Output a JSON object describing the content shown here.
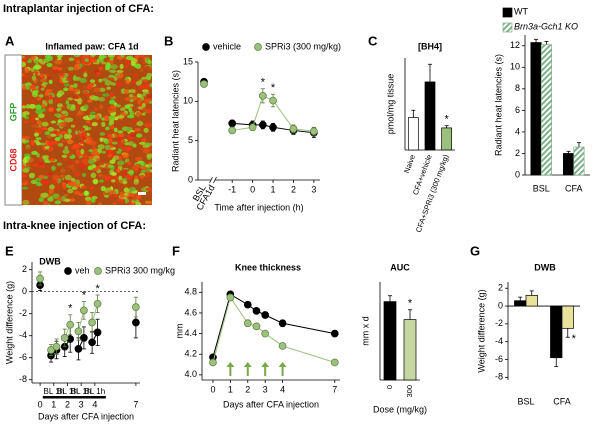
{
  "sections": [
    "Intraplantar injection of CFA:",
    "Intra-knee injection of CFA:"
  ],
  "image_panel": {
    "panel": "A",
    "title": "Inflamed paw: CFA 1d",
    "stain_labels": [
      "CD68",
      "GFP"
    ]
  },
  "chart_data": [
    {
      "type": "line",
      "panel": "B",
      "ylabel": "Radiant heat latencies (s)",
      "xlabel": "Time after injection (h)",
      "baseline_label": "BSL",
      "break_label": "CFA1d",
      "significance_label": "*",
      "x": [
        -1,
        0,
        0.5,
        1,
        2,
        3
      ],
      "xlim": [
        -1.5,
        3.3
      ],
      "xticks": [
        -1,
        0,
        1,
        2,
        3
      ],
      "ylim": [
        0,
        15
      ],
      "yticks": [
        0,
        5,
        10,
        15
      ],
      "series": [
        {
          "name": "vehicle",
          "color": "#000000",
          "baseline": 12.5,
          "baseline_error": 0.3,
          "values": [
            7.2,
            7.0,
            7.0,
            6.7,
            6.3,
            6.0
          ],
          "errors": [
            0.4,
            0.5,
            0.5,
            0.5,
            0.5,
            0.6
          ]
        },
        {
          "name": "SPRi3 (300 mg/kg)",
          "color": "#9cc07e",
          "baseline": 12.2,
          "baseline_error": 0.3,
          "values": [
            6.3,
            6.7,
            10.7,
            10.1,
            6.5,
            6.2
          ],
          "errors": [
            0.3,
            0.4,
            0.9,
            0.8,
            0.5,
            0.5
          ],
          "significant": [
            false,
            false,
            true,
            true,
            false,
            false
          ]
        }
      ]
    },
    {
      "type": "bar",
      "panel": "C",
      "title": "[BH4]",
      "ylabel": "pmol/mg tissue",
      "significance_label": "*",
      "categories": [
        "Naive",
        "CFA+vehicle",
        "CFA+SPRi3 (300 mg/kg)"
      ],
      "values": [
        8.8,
        18.5,
        6.0
      ],
      "errors": [
        2.0,
        4.8,
        0.6
      ],
      "colors": [
        "#ffffff",
        "#000000",
        "#9cc07e"
      ],
      "significant": [
        false,
        false,
        true
      ],
      "ylim": [
        0,
        25
      ]
    },
    {
      "type": "grouped_bar",
      "ylabel": "Radiant heat latencies (s)",
      "categories": [
        "BSL",
        "CFA"
      ],
      "ylim": [
        0,
        13
      ],
      "yticks": [
        0,
        2,
        4,
        6,
        8,
        10,
        12
      ],
      "series": [
        {
          "name": "WT",
          "color": "#000000",
          "values": [
            12.3,
            2.0
          ],
          "errors": [
            0.3,
            0.2
          ]
        },
        {
          "name": "Brn3a-Gch1 KO",
          "color": "#7fb08a",
          "pattern": "hatch",
          "values": [
            12.1,
            2.6
          ],
          "errors": [
            0.3,
            0.4
          ]
        }
      ]
    },
    {
      "type": "line",
      "panel": "E",
      "title": "DWB",
      "ylabel": "Weight difference (g)",
      "xlabel": "Days after CFA injection",
      "significance_label": "*",
      "zero_line": true,
      "line_segments": "paired",
      "period_labels": [
        "BL 1h",
        "BL 1h",
        "BL 1h",
        "BL 1h"
      ],
      "x": [
        0,
        0.8,
        1.2,
        1.8,
        2.2,
        2.8,
        3.2,
        3.8,
        4.2,
        7
      ],
      "xlim": [
        -0.3,
        7.3
      ],
      "xticks": [
        0,
        1,
        2,
        3,
        4,
        7
      ],
      "ylim": [
        -8.3,
        2.7
      ],
      "yticks": [
        2,
        0,
        -2,
        -4,
        -6,
        -8
      ],
      "series": [
        {
          "name": "veh",
          "color": "#000000",
          "values": [
            0.6,
            -5.8,
            -5.3,
            -5.0,
            -4.3,
            -5.2,
            -4.2,
            -4.6,
            -3.7,
            -2.8
          ],
          "errors": [
            0.5,
            0.6,
            0.8,
            0.9,
            1.2,
            1.0,
            1.0,
            1.0,
            1.2,
            1.4
          ]
        },
        {
          "name": "SPRi3 300 mg/kg",
          "color": "#9cc07e",
          "values": [
            1.2,
            -5.3,
            -5.0,
            -4.2,
            -3.0,
            -3.6,
            -1.7,
            -2.8,
            -1.1,
            -1.4
          ],
          "errors": [
            0.6,
            0.5,
            0.7,
            0.8,
            0.9,
            0.8,
            0.8,
            0.9,
            0.8,
            0.9
          ],
          "significant": [
            false,
            false,
            false,
            false,
            true,
            false,
            true,
            false,
            true,
            false
          ]
        }
      ]
    },
    {
      "type": "line",
      "panel": "F",
      "title": "Knee thickness",
      "ylabel": "mm",
      "xlabel": "Days after CFA injection",
      "x": [
        0,
        1,
        2,
        2.5,
        3,
        4,
        7
      ],
      "xlim": [
        -0.4,
        7.3
      ],
      "xticks": [
        0,
        1,
        2,
        3,
        4,
        7
      ],
      "ylim": [
        3.95,
        4.9
      ],
      "yticks": [
        {
          "value": 4,
          "label": "4.0"
        },
        4.2,
        4.4,
        4.6,
        4.8
      ],
      "arrows_at": [
        1,
        2,
        3,
        4
      ],
      "arrow_color": "#7aa84a",
      "series": [
        {
          "color": "#000000",
          "values": [
            4.17,
            4.78,
            4.68,
            4.62,
            4.58,
            4.5,
            4.4
          ],
          "errors": [
            0.02,
            0.03,
            0.02,
            0.02,
            0.02,
            0.03,
            0.03
          ]
        },
        {
          "color": "#9cc07e",
          "values": [
            4.12,
            4.75,
            4.5,
            4.47,
            4.4,
            4.28,
            4.12
          ],
          "errors": [
            0.02,
            0.03,
            0.03,
            0.02,
            0.02,
            0.02,
            0.02
          ]
        }
      ]
    },
    {
      "type": "bar",
      "title": "AUC",
      "ylabel": "mm x d",
      "xlabel": "Dose (mg/kg)",
      "significance_label": "*",
      "categories": [
        "0",
        "300"
      ],
      "values": [
        2.4,
        1.85
      ],
      "errors": [
        0.18,
        0.3
      ],
      "colors": [
        "#000000",
        "#c5d8a4"
      ],
      "significant": [
        false,
        true
      ],
      "ylim": [
        0,
        3
      ]
    },
    {
      "type": "grouped_bar",
      "panel": "G",
      "title": "DWB",
      "ylabel": "Weight difference (g)",
      "significance_label": "*",
      "categories": [
        "BSL",
        "CFA"
      ],
      "ylim": [
        -8.3,
        2.7
      ],
      "yticks": [
        2,
        0,
        -2,
        -4,
        -6,
        -8
      ],
      "series": [
        {
          "color": "#000000",
          "values": [
            0.6,
            -5.8
          ],
          "errors": [
            0.4,
            1.0
          ]
        },
        {
          "color": "#e8e29a",
          "values": [
            1.2,
            -2.5
          ],
          "errors": [
            0.5,
            1.0
          ],
          "significant": [
            false,
            true
          ]
        }
      ]
    }
  ]
}
